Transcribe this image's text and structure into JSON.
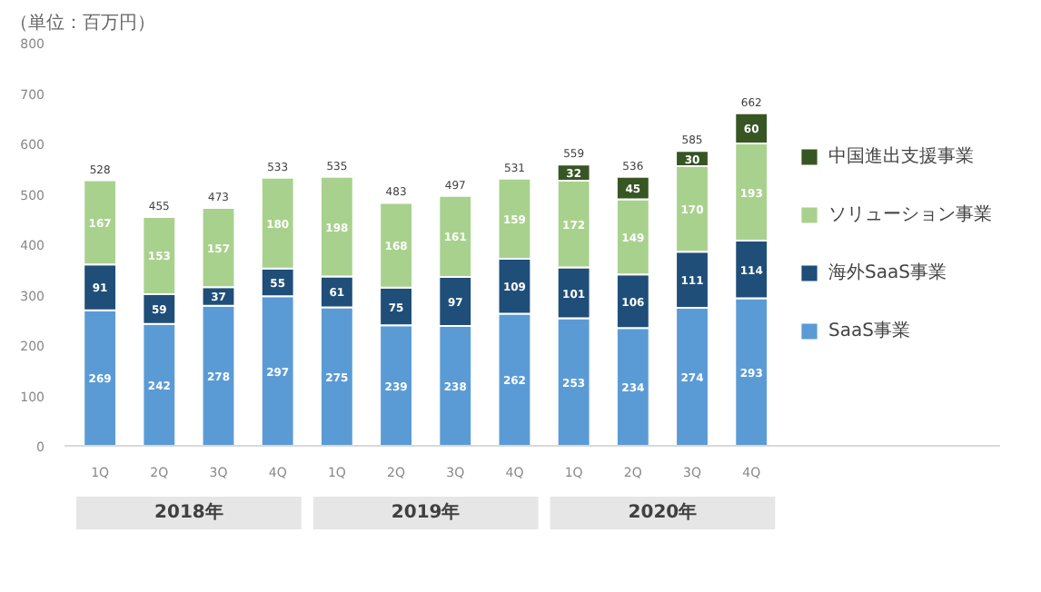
{
  "chart_data": {
    "type": "bar",
    "stacked": true,
    "ylabel": "（単位：百万円）",
    "categories": [
      "1Q",
      "2Q",
      "3Q",
      "4Q",
      "1Q",
      "2Q",
      "3Q",
      "4Q",
      "1Q",
      "2Q",
      "3Q",
      "4Q"
    ],
    "series": [
      {
        "name": "SaaS事業",
        "color": "#5b9bd5",
        "values": [
          269,
          242,
          278,
          297,
          275,
          239,
          238,
          262,
          253,
          234,
          274,
          293
        ]
      },
      {
        "name": "海外SaaS事業",
        "color": "#1f4e79",
        "values": [
          91,
          59,
          37,
          55,
          61,
          75,
          97,
          109,
          101,
          106,
          111,
          114
        ]
      },
      {
        "name": "ソリューション事業",
        "color": "#a9d18e",
        "values": [
          167,
          153,
          157,
          180,
          198,
          168,
          161,
          159,
          172,
          149,
          170,
          193
        ]
      },
      {
        "name": "中国進出支援事業",
        "color": "#375623",
        "values": [
          null,
          null,
          null,
          null,
          null,
          null,
          null,
          null,
          32,
          45,
          30,
          60
        ]
      }
    ],
    "totals": [
      "528",
      "455",
      "473",
      "533",
      "535",
      "483",
      "497",
      "531",
      "559",
      "536",
      "585",
      "662"
    ],
    "data_labels": true,
    "ylim": [
      0,
      800
    ],
    "yticks": [
      0,
      100,
      200,
      300,
      400,
      500,
      600,
      700,
      800
    ],
    "grid": false,
    "legend": "right",
    "annotations": [
      "2018年",
      "2019年",
      "2020年"
    ]
  }
}
